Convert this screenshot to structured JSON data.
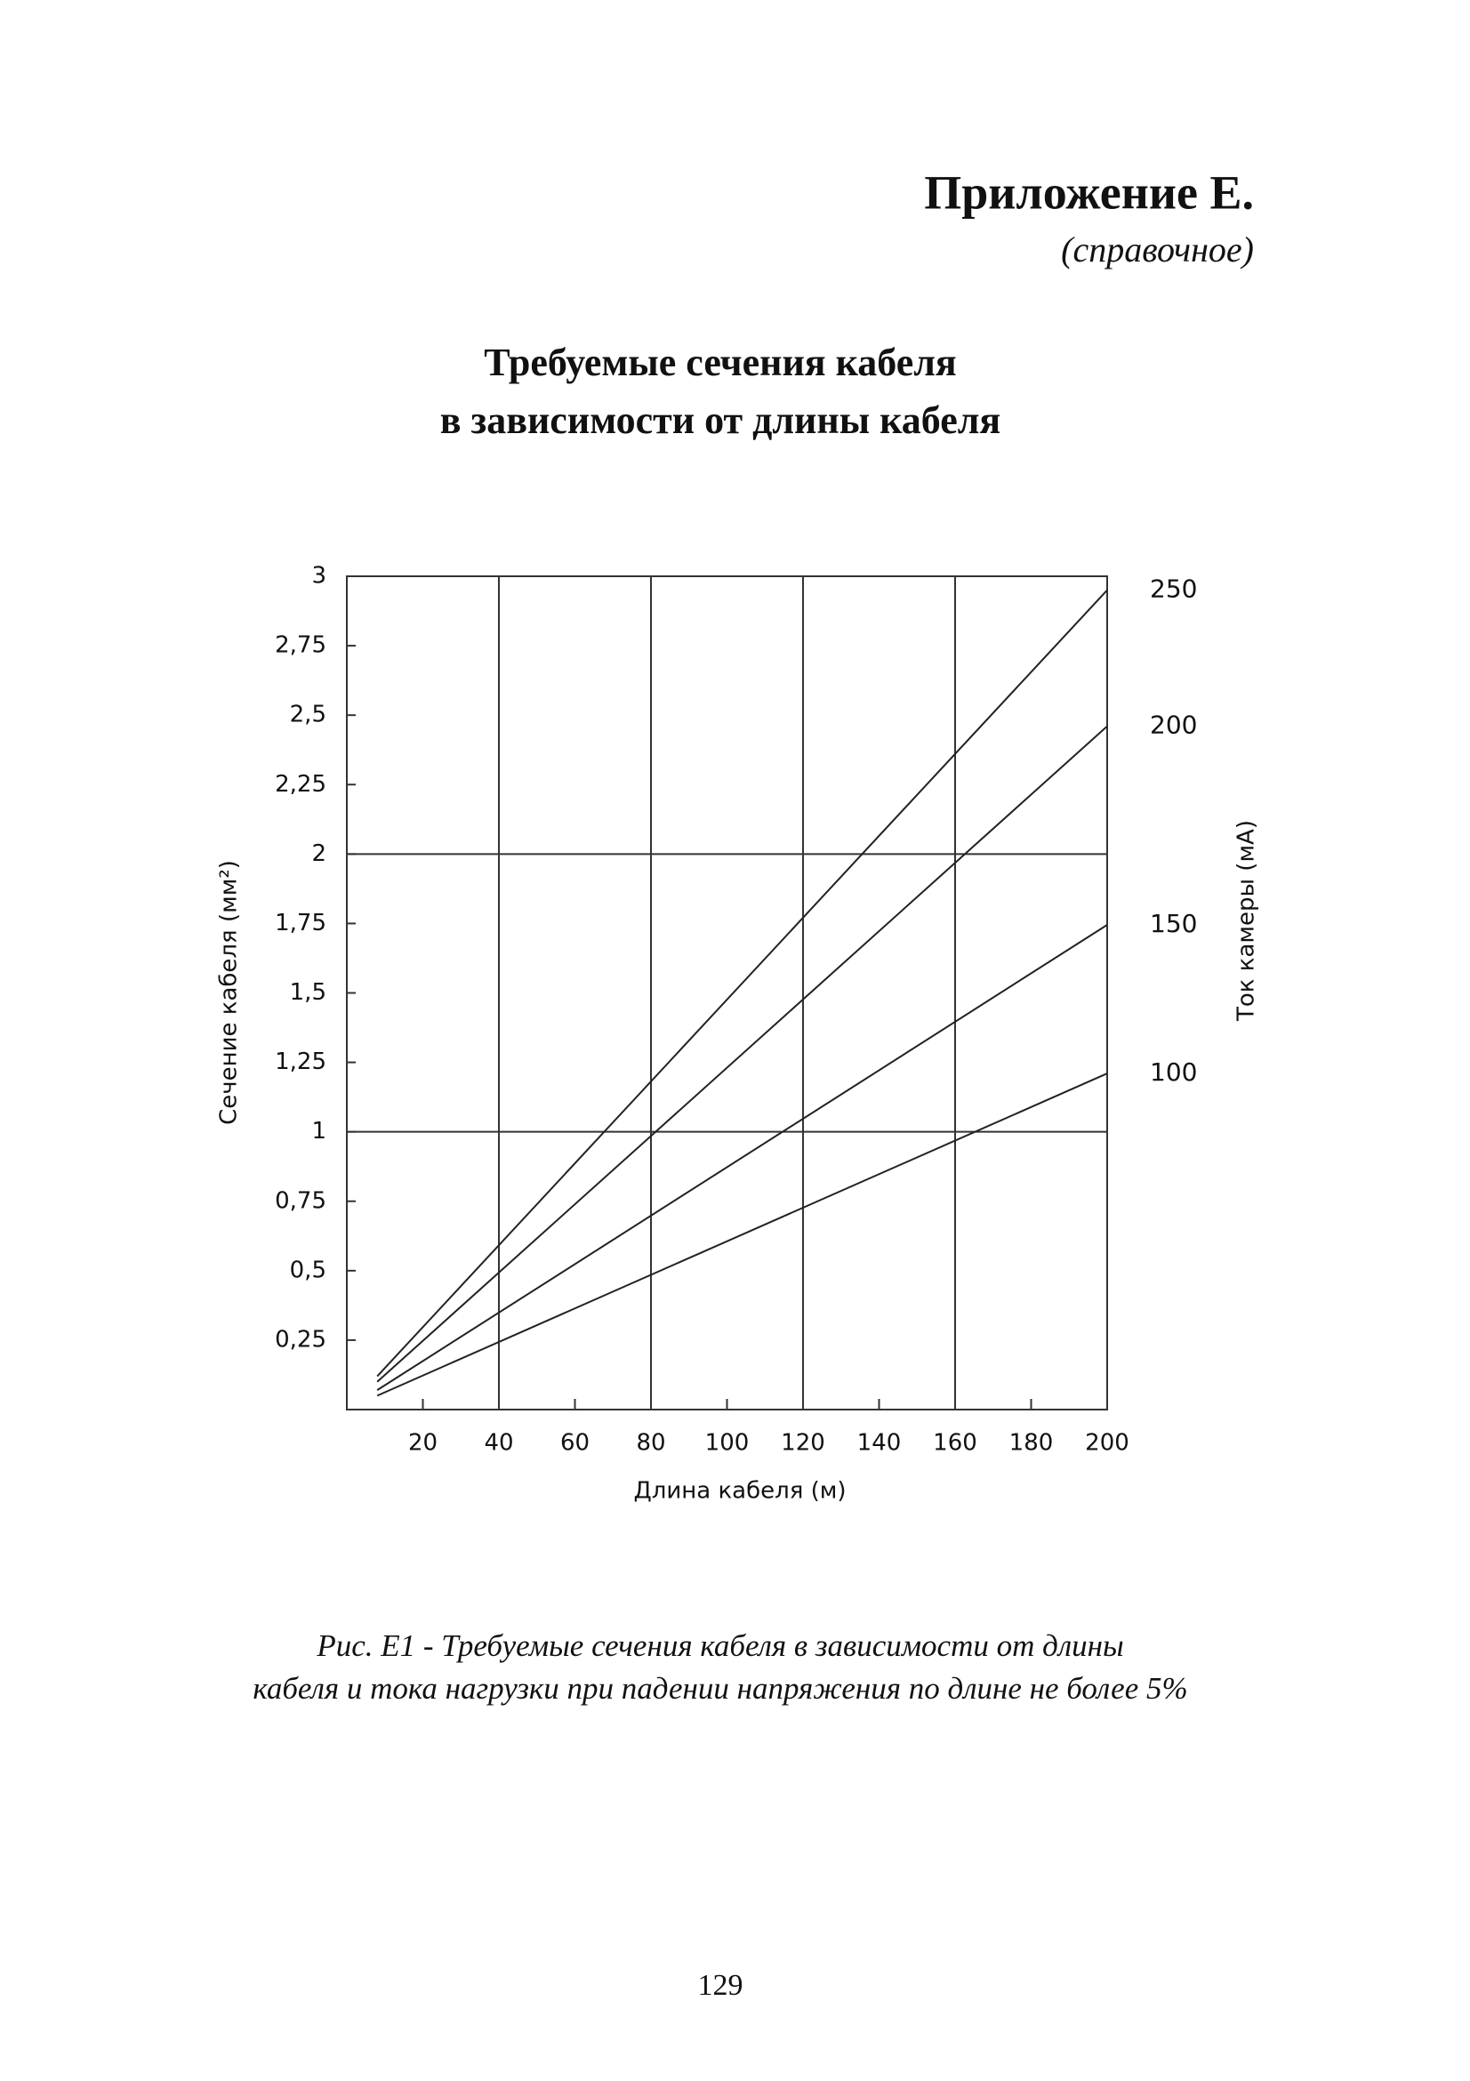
{
  "header": {
    "title": "Приложение Е.",
    "subtitle": "(справочное)"
  },
  "chart_data": {
    "type": "line",
    "title": [
      "Требуемые сечения кабеля",
      "в зависимости от длины кабеля"
    ],
    "x_label": "Длина кабеля (м)",
    "y_label": "Сечение кабеля (мм²)",
    "y2_label": "Ток камеры (мА)",
    "x": [
      8,
      200
    ],
    "series": [
      {
        "name": "250",
        "color": "#222222",
        "values": [
          0.12,
          2.95
        ]
      },
      {
        "name": "200",
        "color": "#222222",
        "values": [
          0.1,
          2.46
        ]
      },
      {
        "name": "150",
        "color": "#222222",
        "values": [
          0.07,
          1.745
        ]
      },
      {
        "name": "100",
        "color": "#222222",
        "values": [
          0.05,
          1.21
        ]
      }
    ],
    "xlim": [
      0,
      200
    ],
    "ylim": [
      0,
      3
    ],
    "xticks": [
      20,
      40,
      60,
      80,
      100,
      120,
      140,
      160,
      180,
      200
    ],
    "yticks": [
      {
        "value": 0.25,
        "label": "0,25"
      },
      {
        "value": 0.5,
        "label": "0,5"
      },
      {
        "value": 0.75,
        "label": "0,75"
      },
      1,
      {
        "value": 1.25,
        "label": "1,25"
      },
      {
        "value": 1.5,
        "label": "1,5"
      },
      {
        "value": 1.75,
        "label": "1,75"
      },
      2,
      {
        "value": 2.25,
        "label": "2,25"
      },
      {
        "value": 2.5,
        "label": "2,5"
      },
      {
        "value": 2.75,
        "label": "2,75"
      },
      3
    ],
    "xgrid": [
      40,
      80,
      120,
      160
    ],
    "ygrid": [
      1,
      2
    ]
  },
  "caption": [
    "Рис. Е1 - Требуемые сечения кабеля в зависимости от длины",
    "кабеля и тока нагрузки при падении напряжения по длине не более 5%"
  ],
  "page_number": "129"
}
